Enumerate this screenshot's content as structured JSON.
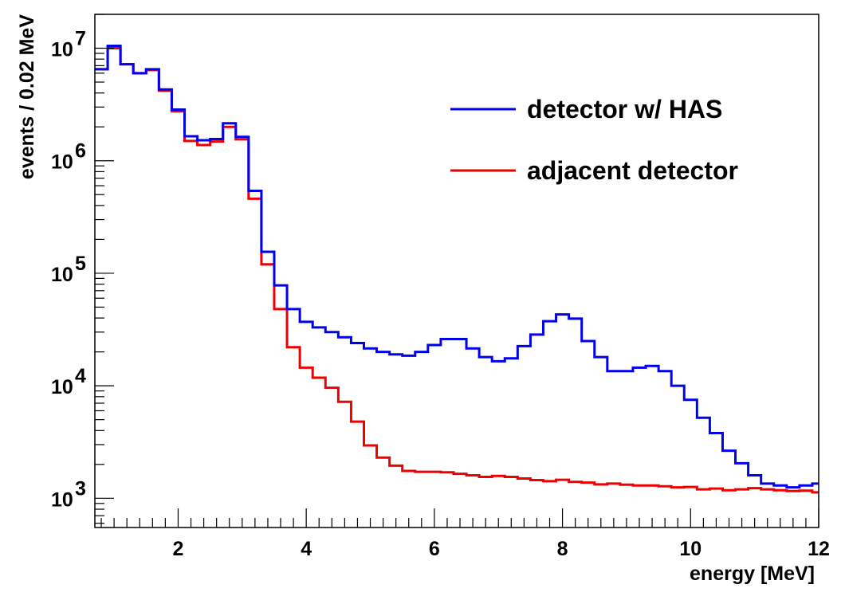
{
  "chart_data": {
    "type": "line",
    "style": "step-histogram",
    "xlabel": "energy [MeV]",
    "ylabel": "events / 0.02 MeV",
    "xlim": [
      0.7,
      12
    ],
    "ylim": [
      550,
      20000000
    ],
    "yscale": "log",
    "grid": false,
    "legend_position": "top-right",
    "x_ticks": [
      {
        "value": 2,
        "label": "2"
      },
      {
        "value": 4,
        "label": "4"
      },
      {
        "value": 6,
        "label": "6"
      },
      {
        "value": 8,
        "label": "8"
      },
      {
        "value": 10,
        "label": "10"
      },
      {
        "value": 12,
        "label": "12"
      }
    ],
    "y_ticks": [
      {
        "value": 1000,
        "base": "10",
        "exp": "3"
      },
      {
        "value": 10000,
        "base": "10",
        "exp": "4"
      },
      {
        "value": 100000,
        "base": "10",
        "exp": "5"
      },
      {
        "value": 1000000,
        "base": "10",
        "exp": "6"
      },
      {
        "value": 10000000,
        "base": "10",
        "exp": "7"
      }
    ],
    "bin_edges_start": 0.7,
    "bin_width": 0.2,
    "series": [
      {
        "name": "detector w/ HAS",
        "color": "#0000ee",
        "values": [
          6500000,
          10500000,
          7200000,
          6000000,
          6500000,
          4300000,
          2850000,
          1650000,
          1520000,
          1560000,
          2150000,
          1630000,
          540000,
          155000,
          78000,
          48000,
          37000,
          33000,
          30000,
          27000,
          24000,
          21500,
          20000,
          19000,
          18500,
          20000,
          23000,
          26000,
          26000,
          21500,
          18000,
          16500,
          17500,
          22500,
          28500,
          37500,
          43000,
          39500,
          25000,
          18000,
          13500,
          13500,
          14500,
          15000,
          13500,
          10000,
          7500,
          5200,
          3800,
          2650,
          2050,
          1600,
          1350,
          1300,
          1250,
          1300,
          1350
        ]
      },
      {
        "name": "adjacent detector",
        "color": "#ee0000",
        "values": [
          6500000,
          10000000,
          7200000,
          6000000,
          6400000,
          4200000,
          2750000,
          1500000,
          1380000,
          1480000,
          2000000,
          1550000,
          460000,
          120000,
          48000,
          22000,
          14500,
          11800,
          9600,
          7200,
          4800,
          2950,
          2300,
          1950,
          1750,
          1720,
          1720,
          1700,
          1650,
          1600,
          1550,
          1580,
          1550,
          1500,
          1450,
          1420,
          1460,
          1400,
          1380,
          1330,
          1350,
          1320,
          1300,
          1300,
          1280,
          1250,
          1260,
          1200,
          1220,
          1180,
          1200,
          1230,
          1200,
          1180,
          1160,
          1170,
          1130
        ]
      }
    ]
  }
}
